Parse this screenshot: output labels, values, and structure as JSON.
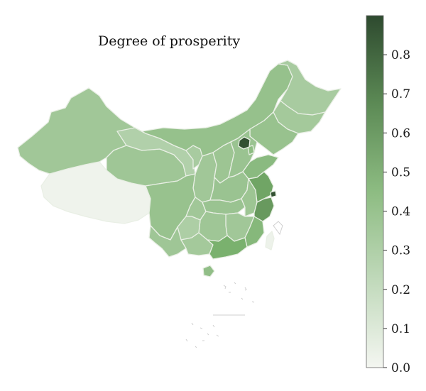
{
  "title": "Degree of prosperity",
  "colorbar": {
    "min": 0.0,
    "max": 0.9,
    "ticks": [
      "0.0",
      "0.1",
      "0.2",
      "0.3",
      "0.4",
      "0.5",
      "0.6",
      "0.7",
      "0.8"
    ],
    "color_low": "#f4f6f1",
    "color_high": "#2e4a2f"
  },
  "map": {
    "regions": [
      {
        "id": "xizang",
        "value": 0.02
      },
      {
        "id": "xinjiang",
        "value": 0.36
      },
      {
        "id": "qinghai",
        "value": 0.37
      },
      {
        "id": "gansu",
        "value": 0.29
      },
      {
        "id": "neimenggu",
        "value": 0.41
      },
      {
        "id": "heilongjiang",
        "value": 0.33
      },
      {
        "id": "jilin",
        "value": 0.35
      },
      {
        "id": "liaoning",
        "value": 0.4
      },
      {
        "id": "ningxia",
        "value": 0.33
      },
      {
        "id": "shaanxi",
        "value": 0.36
      },
      {
        "id": "shanxi",
        "value": 0.38
      },
      {
        "id": "hebei",
        "value": 0.39
      },
      {
        "id": "beijing",
        "value": 0.88
      },
      {
        "id": "tianjin",
        "value": 0.45
      },
      {
        "id": "shandong",
        "value": 0.46
      },
      {
        "id": "henan",
        "value": 0.39
      },
      {
        "id": "sichuan",
        "value": 0.4
      },
      {
        "id": "chongqing",
        "value": 0.36
      },
      {
        "id": "hubei",
        "value": 0.39
      },
      {
        "id": "anhui",
        "value": 0.38
      },
      {
        "id": "jiangsu",
        "value": 0.58
      },
      {
        "id": "shanghai",
        "value": 0.88
      },
      {
        "id": "zhejiang",
        "value": 0.62
      },
      {
        "id": "jiangxi",
        "value": 0.36
      },
      {
        "id": "hunan",
        "value": 0.37
      },
      {
        "id": "fujian",
        "value": 0.48
      },
      {
        "id": "guizhou",
        "value": 0.31
      },
      {
        "id": "yunnan",
        "value": 0.37
      },
      {
        "id": "guangxi",
        "value": 0.35
      },
      {
        "id": "guangdong",
        "value": 0.53
      },
      {
        "id": "hainan",
        "value": 0.43
      },
      {
        "id": "taiwan",
        "value": 0.03
      }
    ]
  }
}
